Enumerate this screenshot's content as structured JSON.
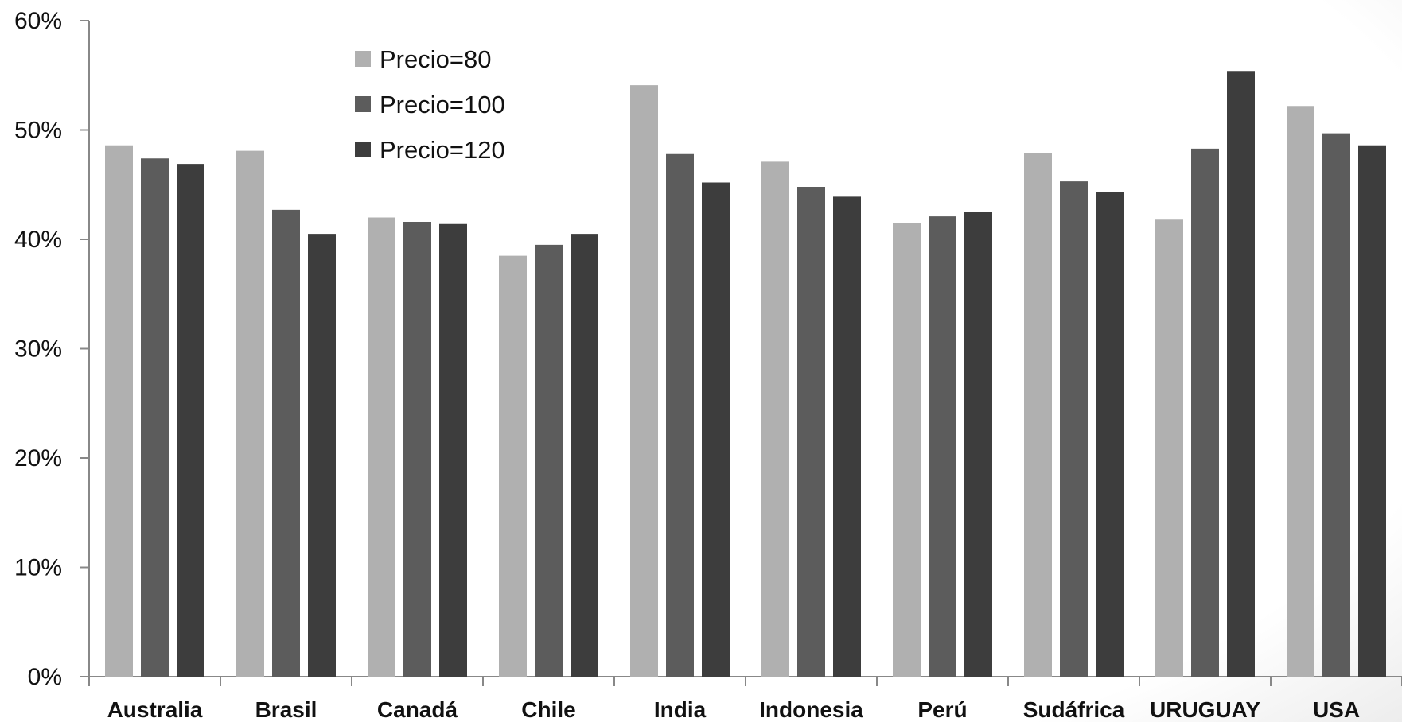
{
  "chart_data": {
    "type": "bar",
    "categories": [
      "Australia",
      "Brasil",
      "Canadá",
      "Chile",
      "India",
      "Indonesia",
      "Perú",
      "Sudáfrica",
      "URUGUAY",
      "USA"
    ],
    "series": [
      {
        "name": "Precio=80",
        "color": "#b0b0b0",
        "values": [
          48.6,
          48.1,
          42.0,
          38.5,
          54.1,
          47.1,
          41.5,
          47.9,
          41.8,
          52.2
        ]
      },
      {
        "name": "Precio=100",
        "color": "#5c5c5c",
        "values": [
          47.4,
          42.7,
          41.6,
          39.5,
          47.8,
          44.8,
          42.1,
          45.3,
          48.3,
          49.7
        ]
      },
      {
        "name": "Precio=120",
        "color": "#3d3d3d",
        "values": [
          46.9,
          40.5,
          41.4,
          40.5,
          45.2,
          43.9,
          42.5,
          44.3,
          55.4,
          48.6
        ]
      }
    ],
    "ylim": [
      0,
      60
    ],
    "yticks": [
      "0%",
      "10%",
      "20%",
      "30%",
      "40%",
      "50%",
      "60%"
    ],
    "title": "",
    "xlabel": "",
    "ylabel": "",
    "grid": false,
    "legend_position": "top-left"
  }
}
